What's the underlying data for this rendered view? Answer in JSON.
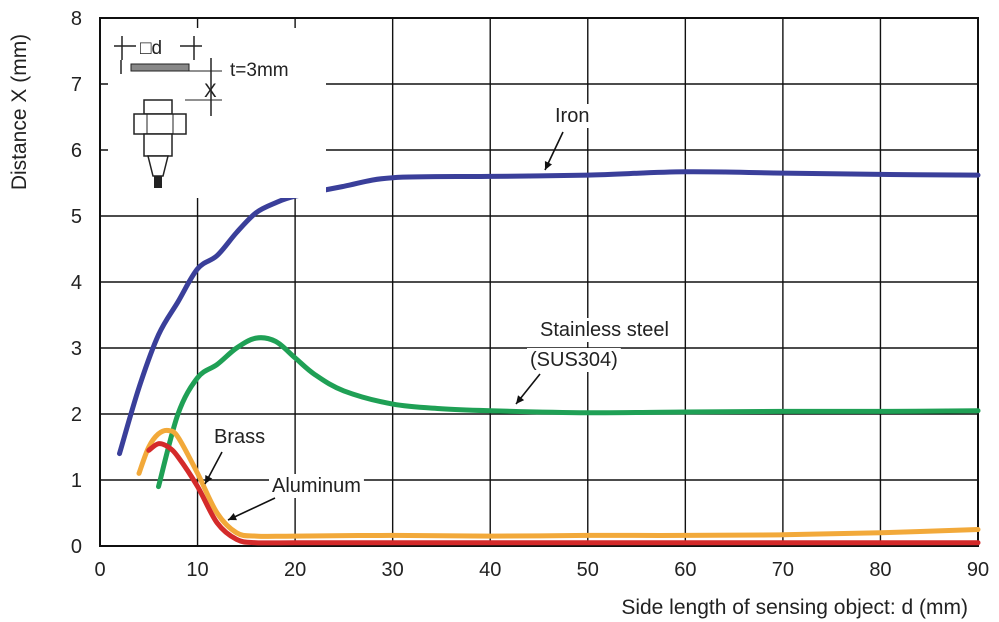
{
  "chart_data": {
    "type": "line",
    "title": "",
    "xlabel": "Side length of sensing object: d (mm)",
    "ylabel": "Distance X (mm)",
    "xlim": [
      0,
      90
    ],
    "ylim": [
      0,
      8
    ],
    "xticks": [
      0,
      10,
      20,
      30,
      40,
      50,
      60,
      70,
      80,
      90
    ],
    "yticks": [
      0,
      1,
      2,
      3,
      4,
      5,
      6,
      7,
      8
    ],
    "grid": true,
    "legend": "inline labels",
    "series": [
      {
        "name": "Iron",
        "color": "#3a3f9a",
        "x": [
          2,
          4,
          6,
          8,
          10,
          12,
          14,
          16,
          18,
          20,
          25,
          30,
          40,
          50,
          60,
          70,
          80,
          90
        ],
        "y": [
          1.4,
          2.4,
          3.2,
          3.7,
          4.2,
          4.4,
          4.75,
          5.05,
          5.2,
          5.3,
          5.45,
          5.58,
          5.6,
          5.62,
          5.67,
          5.65,
          5.63,
          5.62
        ]
      },
      {
        "name": "Stainless steel (SUS304)",
        "color": "#1fa055",
        "x": [
          6,
          8,
          10,
          12,
          14,
          16,
          18,
          20,
          22,
          25,
          30,
          35,
          40,
          50,
          60,
          70,
          80,
          90
        ],
        "y": [
          0.9,
          2.0,
          2.55,
          2.75,
          3.0,
          3.15,
          3.1,
          2.85,
          2.6,
          2.35,
          2.15,
          2.08,
          2.05,
          2.02,
          2.03,
          2.04,
          2.04,
          2.05
        ]
      },
      {
        "name": "Brass",
        "color": "#f2a93a",
        "x": [
          4,
          5,
          6,
          7,
          8,
          10,
          12,
          14,
          16,
          20,
          30,
          40,
          50,
          60,
          70,
          80,
          90
        ],
        "y": [
          1.1,
          1.5,
          1.7,
          1.75,
          1.65,
          1.1,
          0.5,
          0.2,
          0.15,
          0.15,
          0.16,
          0.15,
          0.16,
          0.16,
          0.17,
          0.2,
          0.25
        ]
      },
      {
        "name": "Aluminum",
        "color": "#d42a2a",
        "x": [
          5,
          6,
          7,
          8,
          10,
          12,
          14,
          16,
          20,
          30,
          40,
          50,
          60,
          70,
          80,
          90
        ],
        "y": [
          1.45,
          1.55,
          1.5,
          1.35,
          0.9,
          0.35,
          0.1,
          0.05,
          0.05,
          0.05,
          0.05,
          0.05,
          0.05,
          0.05,
          0.05,
          0.05
        ]
      }
    ],
    "annotations": {
      "iron_label": "Iron",
      "stainless_label_line1": "Stainless steel",
      "stainless_label_line2": "(SUS304)",
      "brass_label": "Brass",
      "aluminum_label": "Aluminum",
      "inset_d_label": "□d",
      "inset_t_label": "t=3mm",
      "inset_x_label": "X"
    }
  }
}
